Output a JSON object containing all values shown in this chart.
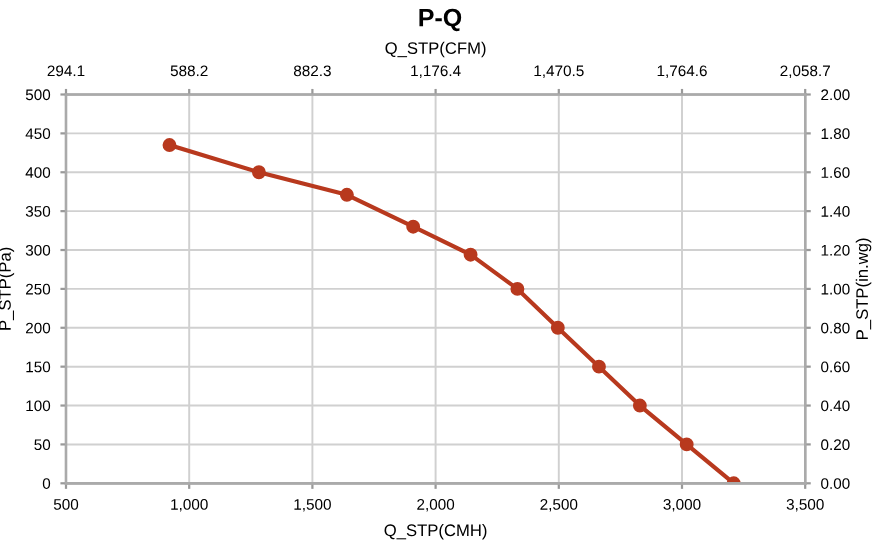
{
  "chart_data": {
    "type": "line",
    "title": "P-Q",
    "xlabel": "Q_STP(CMH)",
    "ylabel": "P_STP(Pa)",
    "y2label": "P_STP(in.wg)",
    "x2label": "Q_STP(CFM)",
    "x": [
      920,
      1283,
      1640,
      1909,
      2142,
      2332,
      2496,
      2663,
      2829,
      3019,
      3210
    ],
    "series": [
      {
        "color": "#b8391e",
        "values": [
          435,
          400,
          371,
          330,
          294,
          250,
          200,
          150,
          100,
          50,
          0
        ]
      }
    ],
    "xlim": [
      500,
      3500
    ],
    "xticks": [
      500,
      {
        "value": 1000,
        "label": "1,000"
      },
      {
        "value": 1500,
        "label": "1,500"
      },
      {
        "value": 2000,
        "label": "2,000"
      },
      {
        "value": 2500,
        "label": "2,500"
      },
      {
        "value": 3000,
        "label": "3,000"
      },
      {
        "value": 3500,
        "label": "3,500"
      }
    ],
    "x2lim": [
      294.1,
      2058.7
    ],
    "x2ticks": [
      294.1,
      588.2,
      882.3,
      {
        "value": 1176.4,
        "label": "1,176.4"
      },
      {
        "value": 1470.5,
        "label": "1,470.5"
      },
      {
        "value": 1764.6,
        "label": "1,764.6"
      },
      {
        "value": 2058.7,
        "label": "2,058.7"
      }
    ],
    "ylim": [
      0,
      500
    ],
    "yticks": [
      0,
      50,
      100,
      150,
      200,
      250,
      300,
      350,
      400,
      450,
      500
    ],
    "y2lim": [
      0,
      2
    ],
    "y2ticks": [
      {
        "value": 0,
        "label": "0.00"
      },
      {
        "value": 0.2,
        "label": "0.20"
      },
      {
        "value": 0.4,
        "label": "0.40"
      },
      {
        "value": 0.6,
        "label": "0.60"
      },
      {
        "value": 0.8,
        "label": "0.80"
      },
      {
        "value": 1,
        "label": "1.00"
      },
      {
        "value": 1.2,
        "label": "1.20"
      },
      {
        "value": 1.4,
        "label": "1.40"
      },
      {
        "value": 1.6,
        "label": "1.60"
      },
      {
        "value": 1.8,
        "label": "1.80"
      },
      {
        "value": 2,
        "label": "2.00"
      }
    ],
    "grid": true,
    "marker": "circle",
    "line_style": "solid"
  }
}
